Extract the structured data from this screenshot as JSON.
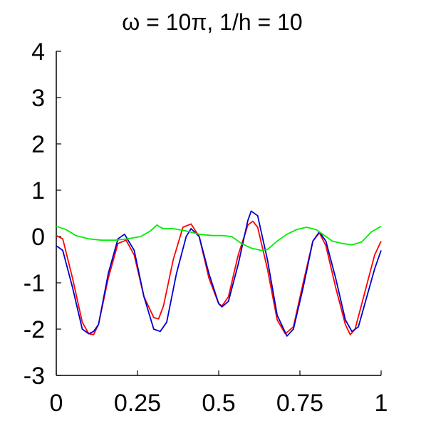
{
  "chart_data": {
    "type": "line",
    "title": "ω = 10π, 1/h = 10",
    "xlim": [
      0,
      1
    ],
    "ylim": [
      -3,
      4
    ],
    "xticks": [
      0,
      0.25,
      0.5,
      0.75,
      1
    ],
    "xtick_labels": [
      "0",
      "0.25",
      "0.5",
      "0.75",
      "1"
    ],
    "yticks": [
      -3,
      -2,
      -1,
      0,
      1,
      2,
      3,
      4
    ],
    "ytick_labels": [
      "-3",
      "-2",
      "-1",
      "0",
      "1",
      "2",
      "3",
      "4"
    ],
    "grid": false,
    "series": [
      {
        "color": "#ff0000",
        "x": [
          0,
          0.02,
          0.05,
          0.08,
          0.1,
          0.115,
          0.13,
          0.16,
          0.19,
          0.215,
          0.24,
          0.27,
          0.3,
          0.315,
          0.33,
          0.36,
          0.39,
          0.415,
          0.44,
          0.47,
          0.5,
          0.51,
          0.53,
          0.56,
          0.59,
          0.605,
          0.62,
          0.65,
          0.68,
          0.705,
          0.73,
          0.76,
          0.79,
          0.81,
          0.83,
          0.86,
          0.89,
          0.905,
          0.92,
          0.95,
          0.98,
          1.0
        ],
        "y": [
          0.02,
          -0.05,
          -0.9,
          -1.85,
          -2.1,
          -2.12,
          -1.9,
          -0.9,
          -0.15,
          -0.08,
          -0.4,
          -1.3,
          -1.75,
          -1.78,
          -1.5,
          -0.5,
          0.2,
          0.27,
          0.0,
          -0.9,
          -1.45,
          -1.5,
          -1.3,
          -0.4,
          0.25,
          0.33,
          0.2,
          -0.7,
          -1.8,
          -2.1,
          -1.95,
          -1.0,
          -0.1,
          0.08,
          -0.2,
          -1.1,
          -1.9,
          -2.12,
          -2.0,
          -1.2,
          -0.4,
          -0.1
        ]
      },
      {
        "color": "#0000cc",
        "x": [
          0,
          0.02,
          0.05,
          0.08,
          0.1,
          0.115,
          0.13,
          0.16,
          0.19,
          0.21,
          0.24,
          0.27,
          0.3,
          0.32,
          0.34,
          0.37,
          0.4,
          0.415,
          0.44,
          0.47,
          0.5,
          0.51,
          0.53,
          0.56,
          0.59,
          0.6,
          0.62,
          0.65,
          0.68,
          0.71,
          0.73,
          0.76,
          0.79,
          0.81,
          0.83,
          0.86,
          0.89,
          0.91,
          0.93,
          0.96,
          0.98,
          1.0
        ],
        "y": [
          -0.2,
          -0.3,
          -1.1,
          -2.0,
          -2.1,
          -2.05,
          -1.9,
          -0.8,
          -0.05,
          0.05,
          -0.3,
          -1.3,
          -2.0,
          -2.05,
          -1.85,
          -0.8,
          0.0,
          0.17,
          0.0,
          -0.8,
          -1.45,
          -1.52,
          -1.4,
          -0.6,
          0.35,
          0.55,
          0.45,
          -0.5,
          -1.7,
          -2.15,
          -2.0,
          -1.1,
          -0.1,
          0.1,
          -0.1,
          -0.9,
          -1.8,
          -2.05,
          -1.95,
          -1.2,
          -0.7,
          -0.3
        ]
      },
      {
        "color": "#00ee00",
        "x": [
          0,
          0.03,
          0.06,
          0.1,
          0.14,
          0.18,
          0.22,
          0.26,
          0.29,
          0.31,
          0.32,
          0.33,
          0.36,
          0.4,
          0.44,
          0.48,
          0.51,
          0.54,
          0.57,
          0.6,
          0.63,
          0.65,
          0.68,
          0.71,
          0.74,
          0.77,
          0.8,
          0.83,
          0.85,
          0.88,
          0.91,
          0.94,
          0.97,
          1.0
        ],
        "y": [
          0.22,
          0.15,
          0.02,
          -0.05,
          -0.08,
          -0.08,
          -0.05,
          0.0,
          0.12,
          0.25,
          0.2,
          0.17,
          0.17,
          0.12,
          0.05,
          0.02,
          0.02,
          0.0,
          -0.15,
          -0.25,
          -0.3,
          -0.28,
          -0.1,
          0.05,
          0.15,
          0.2,
          0.15,
          0.0,
          -0.1,
          -0.15,
          -0.18,
          -0.12,
          0.1,
          0.22
        ]
      }
    ]
  }
}
